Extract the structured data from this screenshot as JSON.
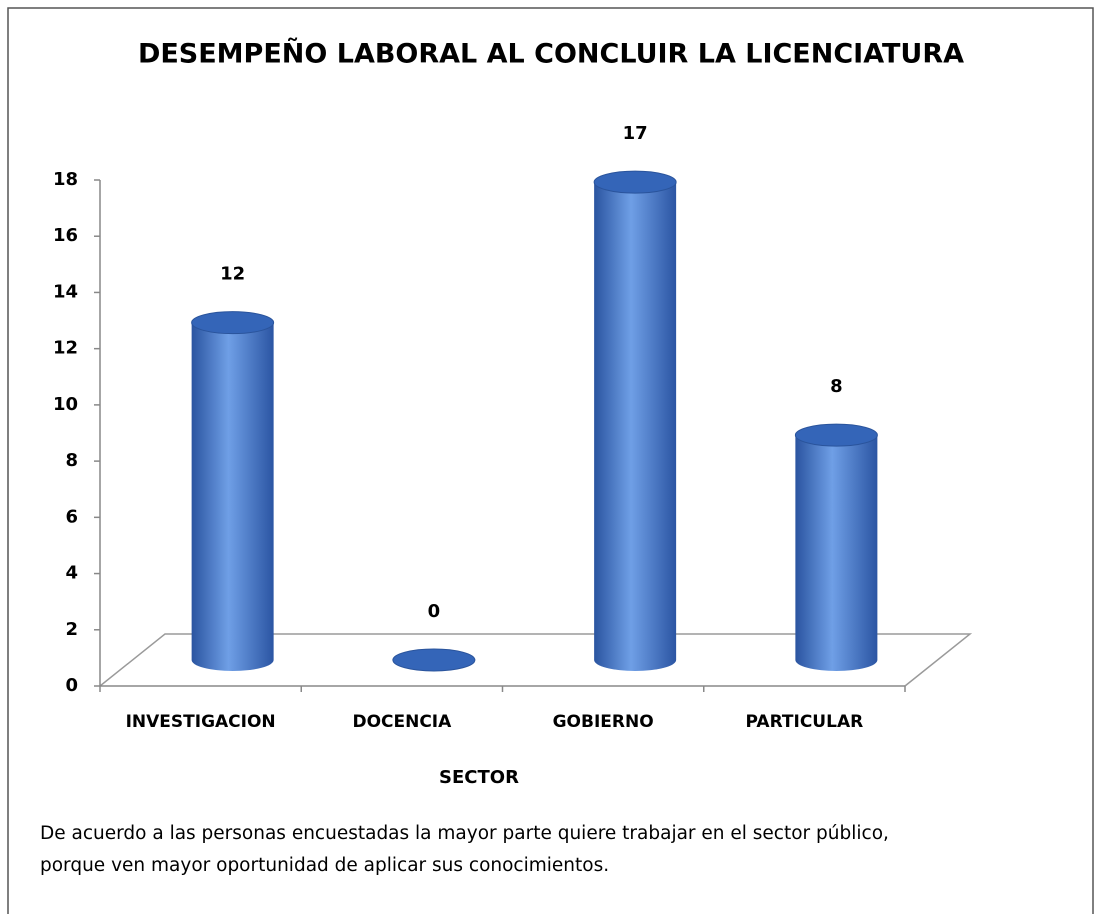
{
  "chart_data": {
    "type": "bar3d",
    "title": "DESEMPEÑO LABORAL AL CONCLUIR LA LICENCIATURA",
    "categories": [
      "INVESTIGACION",
      "DOCENCIA",
      "GOBIERNO",
      "PARTICULAR"
    ],
    "values": [
      12,
      0,
      17,
      8
    ],
    "color": "#4a7fd0",
    "ylim": [
      0,
      18
    ],
    "yticks": [
      0,
      2,
      4,
      6,
      8,
      10,
      12,
      14,
      16,
      18
    ],
    "xlabel": "SECTOR",
    "note": [
      "De acuerdo a las personas encuestadas la mayor parte quiere trabajar en el sector público,",
      "porque ven mayor oportunidad de aplicar sus conocimientos."
    ]
  }
}
